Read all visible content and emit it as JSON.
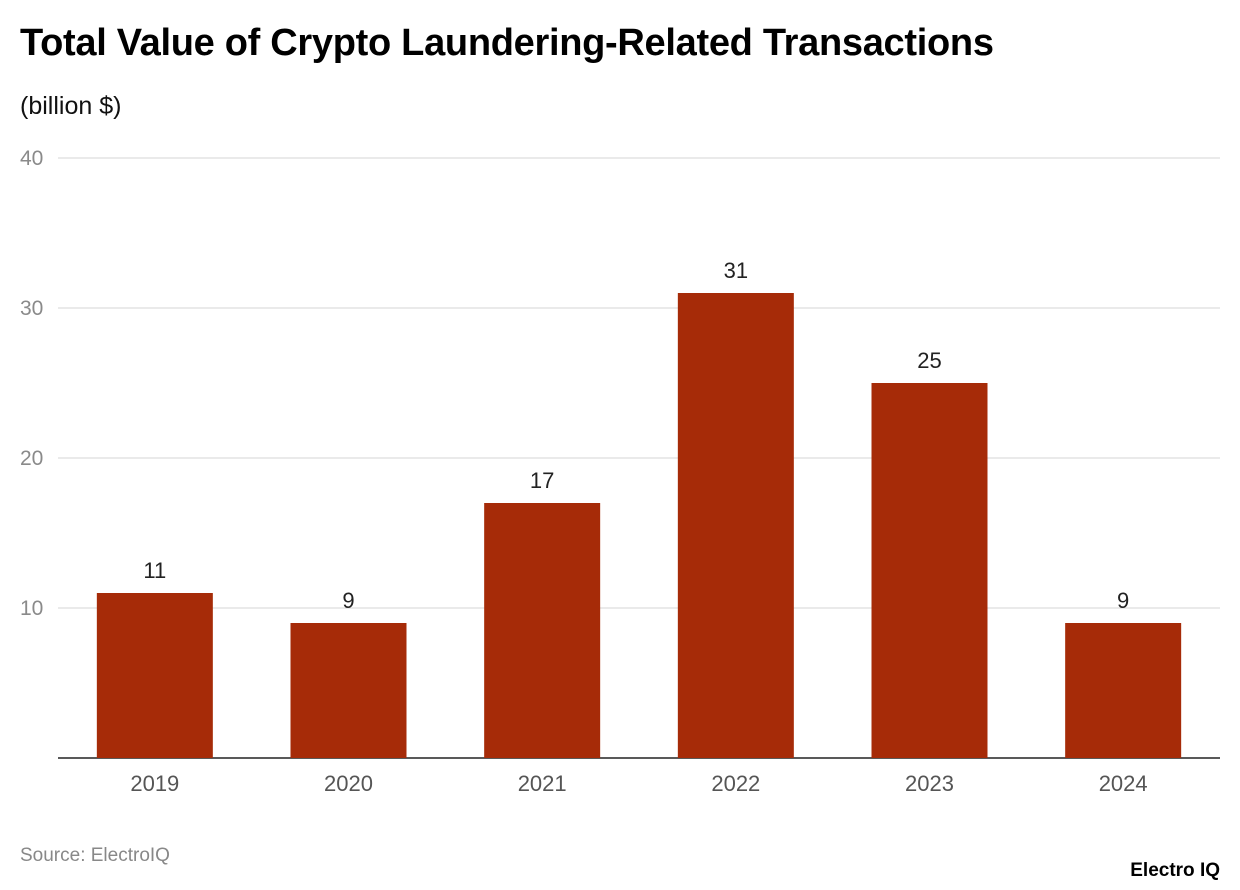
{
  "chart_data": {
    "type": "bar",
    "title": "Total Value of Crypto Laundering-Related Transactions",
    "subtitle": "(billion $)",
    "categories": [
      "2019",
      "2020",
      "2021",
      "2022",
      "2023",
      "2024"
    ],
    "values": [
      11,
      9,
      17,
      31,
      25,
      9
    ],
    "data_labels": [
      "11",
      "9",
      "17",
      "31",
      "25",
      "9"
    ],
    "ylim": [
      0,
      40
    ],
    "yticks": [
      10,
      20,
      30,
      40
    ],
    "ytick_labels": [
      "10",
      "20",
      "30",
      "40"
    ],
    "grid": true,
    "legend": "none",
    "bar_color": "#a62b08"
  },
  "footer": {
    "source": "Source: ElectroIQ",
    "logo": "Electro IQ"
  }
}
